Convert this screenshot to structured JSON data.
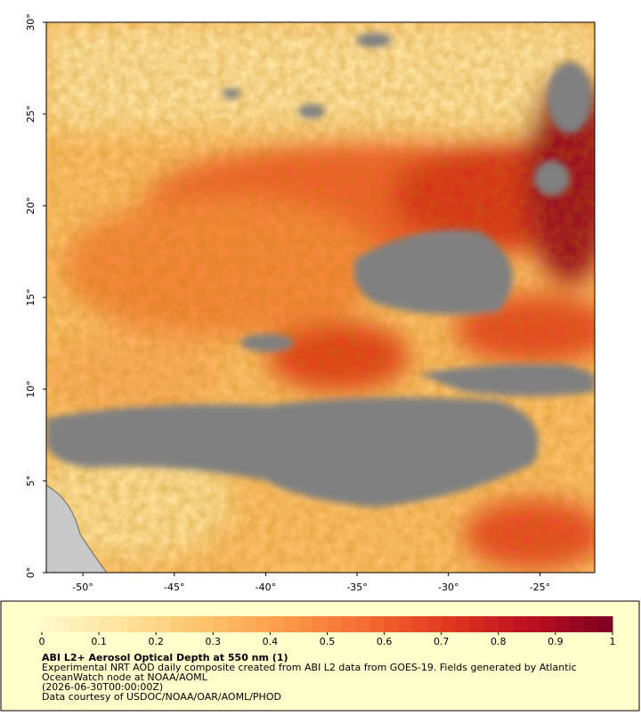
{
  "map": {
    "lon_range": [
      -52,
      -22
    ],
    "lat_range": [
      0,
      30
    ],
    "lon_ticks": [
      {
        "value": -50,
        "label": "-50°"
      },
      {
        "value": -45,
        "label": "-45°"
      },
      {
        "value": -40,
        "label": "-40°"
      },
      {
        "value": -35,
        "label": "-35°"
      },
      {
        "value": -30,
        "label": "-30°"
      },
      {
        "value": -25,
        "label": "-25°"
      }
    ],
    "lat_ticks": [
      {
        "value": 0,
        "label": "0°"
      },
      {
        "value": 5,
        "label": "5°"
      },
      {
        "value": 10,
        "label": "10°"
      },
      {
        "value": 15,
        "label": "15°"
      },
      {
        "value": 20,
        "label": "20°"
      },
      {
        "value": 25,
        "label": "25°"
      },
      {
        "value": 30,
        "label": "30°"
      }
    ]
  },
  "colorbar": {
    "range": [
      0,
      1
    ],
    "ticks": [
      0,
      0.1,
      0.2,
      0.3,
      0.4,
      0.5,
      0.6,
      0.7,
      0.8,
      0.9,
      1
    ],
    "colormap": [
      "#fff8cc",
      "#fee39a",
      "#fdc26a",
      "#fb9a48",
      "#f46a30",
      "#e0361f",
      "#bb1020",
      "#7d0022"
    ]
  },
  "caption": {
    "title": "ABI L2+ Aerosol Optical Depth at 550 nm (1)",
    "line1": "Experimental NRT AOD daily composite created from ABI L2 data from GOES-19. Fields generated by Atlantic",
    "line2": "OceanWatch node at NOAA/AOML",
    "line3": "(2026-06-30T00:00:00Z)",
    "line4": "Data courtesy of USDOC/NOAA/OAR/AOML/PHOD"
  }
}
